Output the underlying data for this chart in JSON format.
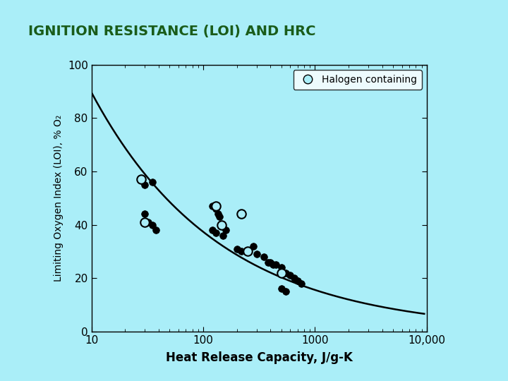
{
  "title": "IGNITION RESISTANCE (LOI) AND HRC",
  "xlabel": "Heat Release Capacity, J/g-K",
  "ylabel": "Limiting Oxygen Index (LOI), % O₂",
  "bg_color": "#aaeef8",
  "plot_bg_color": "#aaeef8",
  "title_color": "#1a5c1a",
  "xlim_log": [
    10,
    10000
  ],
  "ylim": [
    0,
    100
  ],
  "yticks": [
    0,
    20,
    40,
    60,
    80,
    100
  ],
  "xtick_labels": [
    "10",
    "100",
    "1000",
    "10,000"
  ],
  "xtick_vals": [
    10,
    100,
    1000,
    10000
  ],
  "filled_points": [
    [
      30,
      55
    ],
    [
      35,
      56
    ],
    [
      30,
      44
    ],
    [
      32,
      41
    ],
    [
      35,
      40
    ],
    [
      38,
      38
    ],
    [
      120,
      47
    ],
    [
      130,
      46
    ],
    [
      135,
      44
    ],
    [
      140,
      43
    ],
    [
      120,
      38
    ],
    [
      130,
      37
    ],
    [
      150,
      36
    ],
    [
      160,
      38
    ],
    [
      200,
      31
    ],
    [
      220,
      30
    ],
    [
      250,
      30
    ],
    [
      280,
      32
    ],
    [
      300,
      29
    ],
    [
      350,
      28
    ],
    [
      380,
      26
    ],
    [
      400,
      26
    ],
    [
      420,
      25
    ],
    [
      450,
      25
    ],
    [
      500,
      24
    ],
    [
      550,
      22
    ],
    [
      600,
      21
    ],
    [
      650,
      20
    ],
    [
      700,
      19
    ],
    [
      750,
      18
    ],
    [
      500,
      16
    ],
    [
      550,
      15
    ]
  ],
  "open_points": [
    [
      28,
      57
    ],
    [
      30,
      41
    ],
    [
      130,
      47
    ],
    [
      145,
      40
    ],
    [
      220,
      44
    ],
    [
      250,
      30
    ],
    [
      500,
      22
    ]
  ],
  "curve_x_start": 10,
  "curve_x_end": 9500,
  "curve_a": 215,
  "curve_b": -0.38,
  "marker_size_filled": 7,
  "marker_size_open": 9,
  "legend_label": "Halogen containing",
  "line_color": "#000000",
  "dark_green": "#0d4d0d"
}
